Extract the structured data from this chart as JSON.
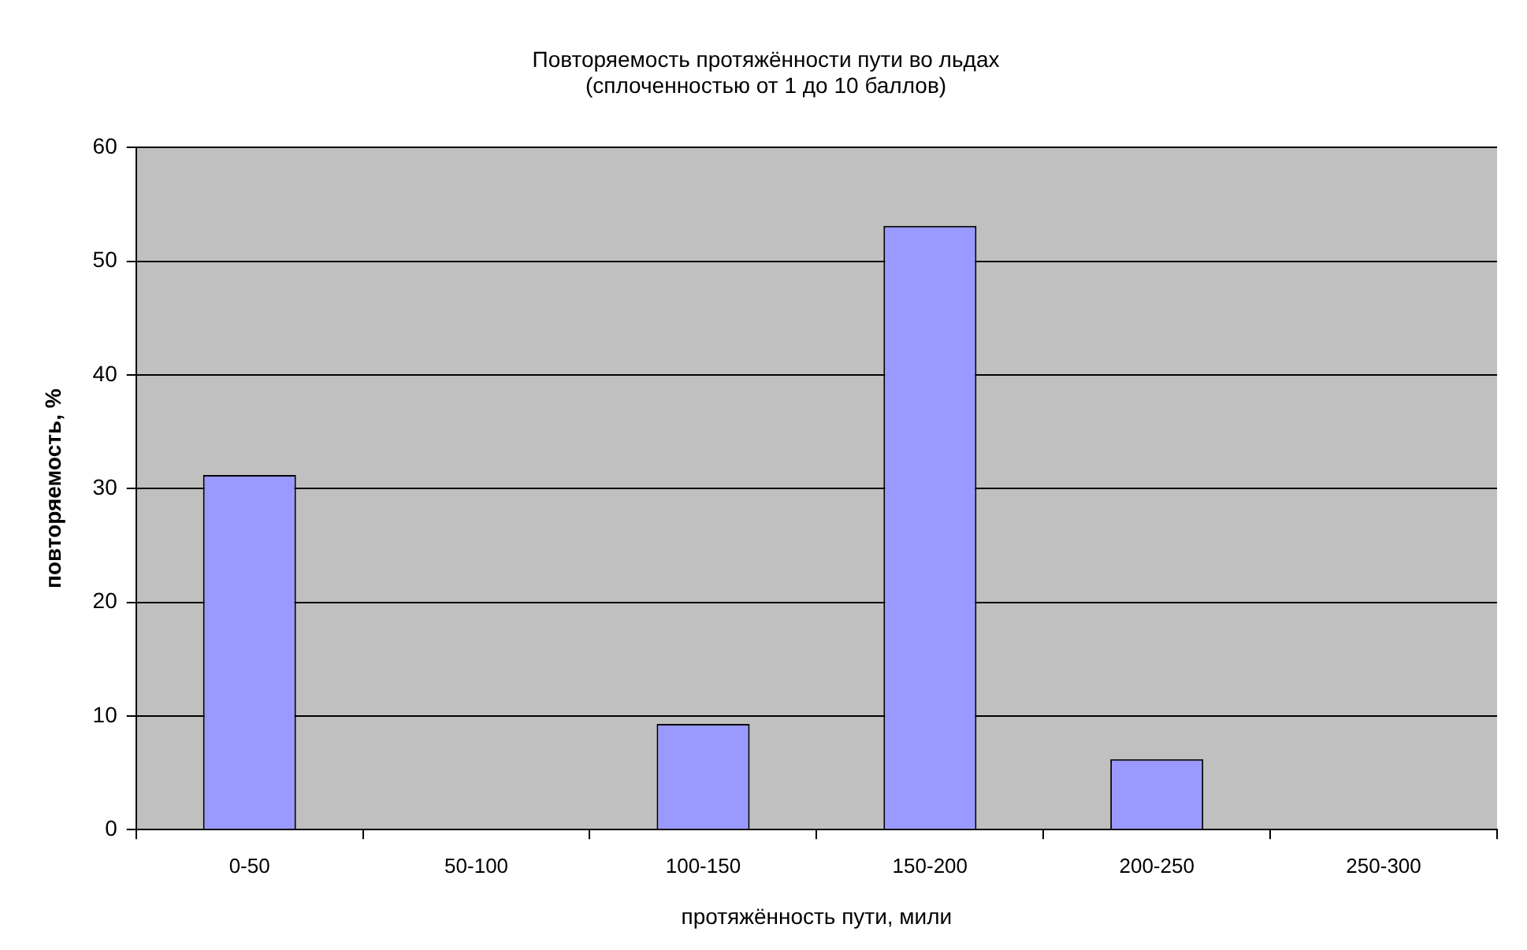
{
  "chart_data": {
    "type": "bar",
    "title": "Повторяемость протяжённости пути во льдах\n(сплоченностью от 1 до 10 баллов)",
    "xlabel": "протяжённость пути, мили",
    "ylabel": "повторяемость, %",
    "categories": [
      "0-50",
      "50-100",
      "100-150",
      "150-200",
      "200-250",
      "250-300"
    ],
    "values": [
      31.2,
      0,
      9.3,
      53.1,
      6.2,
      0
    ],
    "color": "#9999ff",
    "ylim": [
      0,
      60
    ],
    "yticks": [
      0,
      10,
      20,
      30,
      40,
      50,
      60
    ],
    "grid": "y",
    "legend": false
  }
}
